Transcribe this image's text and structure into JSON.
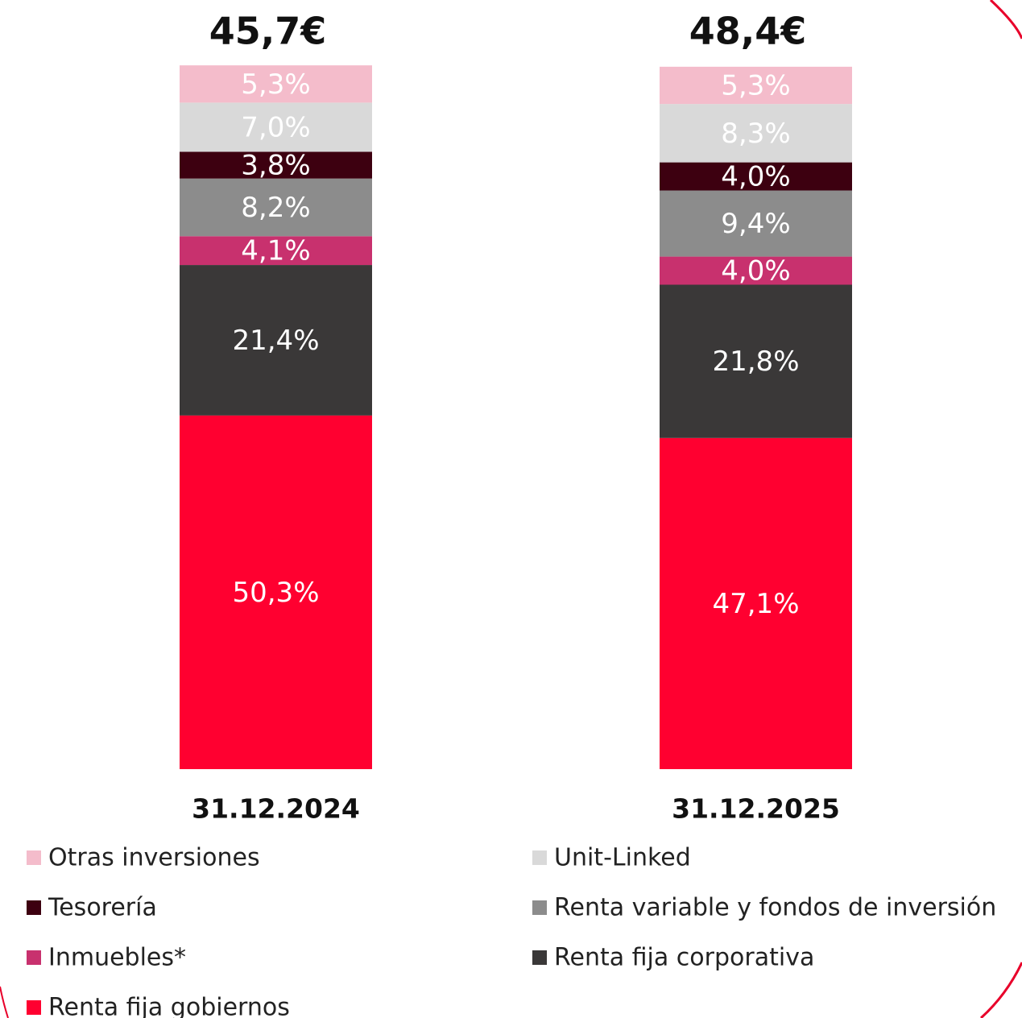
{
  "chart_data": {
    "type": "stacked_bar",
    "categories": [
      "31.12.2024",
      "31.12.2025"
    ],
    "totals": {
      "values": [
        45.7,
        48.4
      ],
      "value_labels": [
        "45,7€",
        "48,4€"
      ]
    },
    "ylim": [
      0,
      100
    ],
    "series": [
      {
        "name": "Renta fija gobiernos",
        "color": "#ff0030",
        "values": [
          50.3,
          47.1
        ],
        "value_labels": [
          "50,3%",
          "47,1%"
        ]
      },
      {
        "name": "Renta fija corporativa",
        "color": "#3a3838",
        "values": [
          21.4,
          21.8
        ],
        "value_labels": [
          "21,4%",
          "21,8%"
        ]
      },
      {
        "name": "Inmuebles*",
        "color": "#c8316e",
        "values": [
          4.1,
          4.0
        ],
        "value_labels": [
          "4,1%",
          "4,0%"
        ]
      },
      {
        "name": "Renta variable y fondos de inversión",
        "color": "#8c8c8c",
        "values": [
          8.2,
          9.4
        ],
        "value_labels": [
          "8,2%",
          "9,4%"
        ]
      },
      {
        "name": "Tesorería",
        "color": "#3d0010",
        "values": [
          3.8,
          4.0
        ],
        "value_labels": [
          "3,8%",
          "4,0%"
        ]
      },
      {
        "name": "Unit-Linked",
        "color": "#d9d9d9",
        "values": [
          7.0,
          8.3
        ],
        "value_labels": [
          "7,0%",
          "8,3%"
        ]
      },
      {
        "name": "Otras inversiones",
        "color": "#f4bccb",
        "values": [
          5.3,
          5.3
        ],
        "value_labels": [
          "5,3%",
          "5,3%"
        ]
      }
    ]
  }
}
